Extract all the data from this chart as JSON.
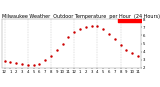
{
  "title": "Milwaukee Weather  Outdoor Temperature  per Hour  (24 Hours)",
  "title_parts": [
    "Milwaukee Weather",
    "Outdoor Temperature",
    "per Hour",
    "(24 Hours)"
  ],
  "hours": [
    0,
    1,
    2,
    3,
    4,
    5,
    6,
    7,
    8,
    9,
    10,
    11,
    12,
    13,
    14,
    15,
    16,
    17,
    18,
    19,
    20,
    21,
    22,
    23
  ],
  "temps": [
    28,
    27,
    26,
    25,
    24,
    24,
    25,
    30,
    35,
    42,
    50,
    58,
    64,
    68,
    70,
    72,
    71,
    68,
    62,
    55,
    48,
    42,
    38,
    35
  ],
  "ylim": [
    20,
    80
  ],
  "xlim": [
    -0.5,
    23.5
  ],
  "dot_color": "#cc0000",
  "highlight_color": "#ff0000",
  "highlight_x_start": 20,
  "highlight_x_end": 23,
  "bg_color": "#ffffff",
  "grid_color": "#aaaaaa",
  "tick_color": "#000000",
  "title_fontsize": 3.5,
  "tick_fontsize": 2.8,
  "yticks": [
    20,
    30,
    40,
    50,
    60,
    70,
    80
  ],
  "ytick_labels": [
    "2",
    "3",
    "4",
    "5",
    "6",
    "7",
    "8"
  ],
  "xtick_labels": [
    "12",
    "1",
    "2",
    "3",
    "4",
    "5",
    "6",
    "7",
    "8",
    "9",
    "10",
    "11",
    "12",
    "1",
    "2",
    "3",
    "4",
    "5",
    "6",
    "7",
    "8",
    "9",
    "10",
    "11"
  ],
  "vgrid_positions": [
    0,
    4,
    8,
    12,
    16,
    20
  ]
}
